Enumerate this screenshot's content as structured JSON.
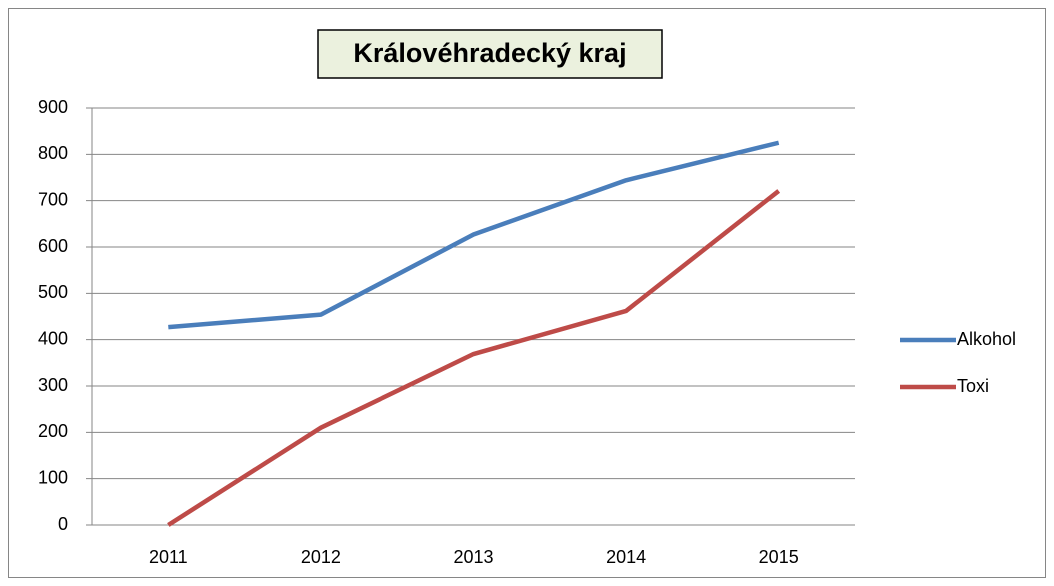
{
  "chart_data": {
    "type": "line",
    "title": "Královéhradecký kraj",
    "categories": [
      "2011",
      "2012",
      "2013",
      "2014",
      "2015"
    ],
    "series": [
      {
        "name": "Alkohol",
        "color": "#4a7ebb",
        "values": [
          427,
          454,
          627,
          744,
          825
        ]
      },
      {
        "name": "Toxi",
        "color": "#be4b48",
        "values": [
          0,
          210,
          369,
          462,
          721
        ]
      }
    ],
    "ylim": [
      0,
      900
    ],
    "yticks": [
      0,
      100,
      200,
      300,
      400,
      500,
      600,
      700,
      800,
      900
    ],
    "grid": true,
    "legend": "right"
  }
}
